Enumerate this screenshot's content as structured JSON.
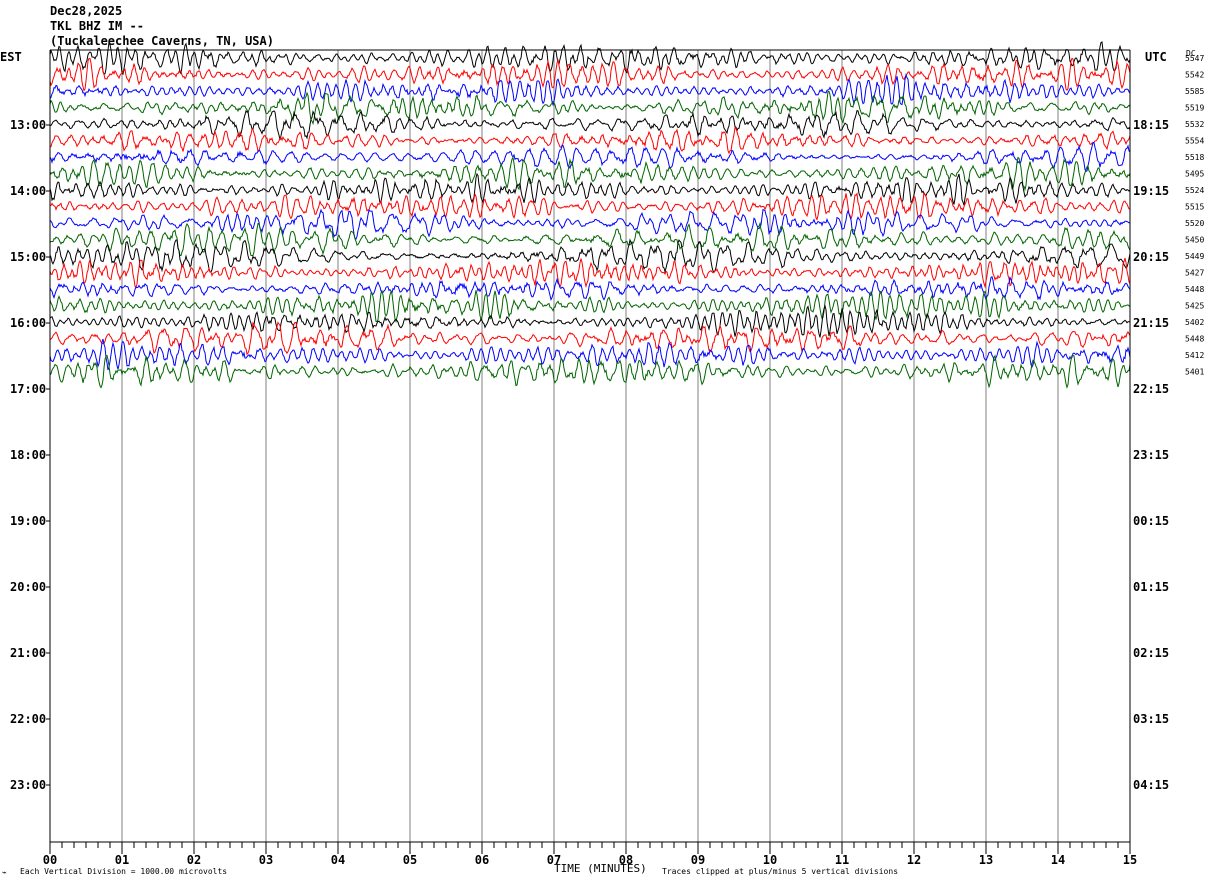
{
  "header": {
    "date": "Dec28,2025",
    "station": "TKL BHZ IM --",
    "location": "(Tuckaleechee Caverns, TN, USA)"
  },
  "left_axis_label": "EST",
  "right_axis_label": "UTC",
  "dc_label": "DC",
  "footer": {
    "scale_note": "Each Vertical Division = 1000.00 microvolts",
    "xlabel": "TIME (MINUTES)",
    "clip_note": "Traces clipped at plus/minus 5 vertical divisions"
  },
  "chart_data": {
    "type": "line",
    "title": "TKL BHZ IM --",
    "xlabel": "TIME (MINUTES)",
    "xlim": [
      0,
      15
    ],
    "x_ticks": [
      "00",
      "01",
      "02",
      "03",
      "04",
      "05",
      "06",
      "07",
      "08",
      "09",
      "10",
      "11",
      "12",
      "13",
      "14",
      "15"
    ],
    "left_time_labels": [
      "13:00",
      "14:00",
      "15:00",
      "16:00",
      "17:00",
      "18:00",
      "19:00",
      "20:00",
      "21:00",
      "22:00",
      "23:00"
    ],
    "right_time_labels": [
      "18:15",
      "19:15",
      "20:15",
      "21:15",
      "22:15",
      "23:15",
      "00:15",
      "01:15",
      "02:15",
      "03:15",
      "04:15"
    ],
    "trace_colors": [
      "#000000",
      "#ff0000",
      "#0000ff",
      "#006400"
    ],
    "dc_offsets": [
      5547,
      5542,
      5585,
      5519,
      5532,
      5554,
      5518,
      5495,
      5524,
      5515,
      5520,
      5450,
      5449,
      5427,
      5448,
      5425,
      5402,
      5448,
      5412,
      5401
    ],
    "grid": true
  }
}
